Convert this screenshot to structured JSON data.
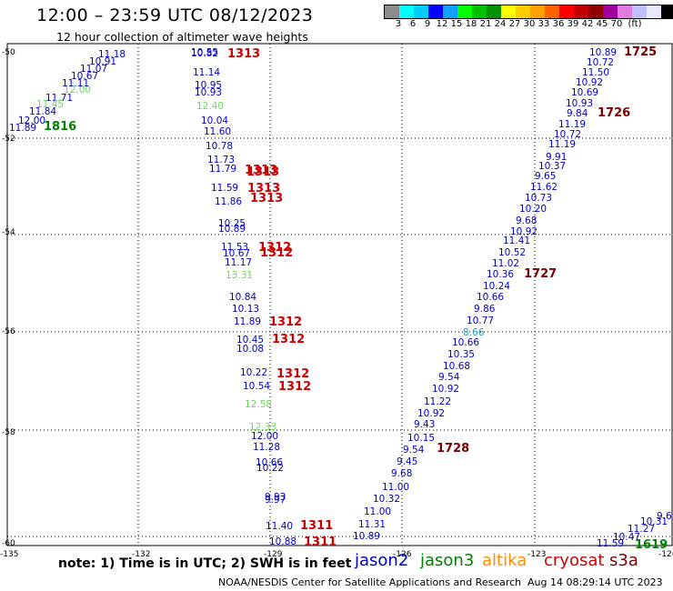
{
  "header": {
    "title": "12:00 – 23:59 UTC 08/12/2023",
    "subtitle": "12 hour collection of altimeter wave heights"
  },
  "legend": {
    "colors": [
      "#8c8c8c",
      "#00ffff",
      "#00ccff",
      "#0000ff",
      "#10a0ff",
      "#00ff00",
      "#00c000",
      "#009000",
      "#ffff00",
      "#ffcc00",
      "#ffa000",
      "#ff6000",
      "#ff0000",
      "#c00000",
      "#900000",
      "#a000a0",
      "#e07ce0",
      "#c0c0ff",
      "#e8e8ff",
      "#000000"
    ],
    "labels": [
      "3",
      "6",
      "9",
      "12",
      "15",
      "18",
      "21",
      "24",
      "27",
      "30",
      "33",
      "36",
      "39",
      "42",
      "45",
      "70",
      "(ft)"
    ]
  },
  "axes": {
    "lat_labels": [
      "-50",
      "-52",
      "-54",
      "-56",
      "-58",
      "-60"
    ],
    "lon_labels": [
      "-135",
      "-132",
      "-129",
      "-126",
      "-123",
      "-12("
    ]
  },
  "colors": {
    "jason2": "#0000cc",
    "jason3": "#008000",
    "altika": "#ff8c00",
    "cryosat": "#cc0000",
    "s3a": "#7a0000",
    "light": "#66dd55",
    "cyan": "#2299bb"
  },
  "labels": [
    {
      "t": "11.18",
      "c": "jason2"
    },
    {
      "t": "10.91",
      "c": "jason2"
    },
    {
      "t": "11.07",
      "c": "jason2"
    },
    {
      "t": "10.67",
      "c": "jason2"
    },
    {
      "t": "12.00",
      "c": "light"
    },
    {
      "t": "11.11",
      "c": "jason2"
    },
    {
      "t": "11.71",
      "c": "jason2"
    },
    {
      "t": "11.45",
      "c": "light"
    },
    {
      "t": "11.84",
      "c": "jason2"
    },
    {
      "t": "12.00",
      "c": "jason2"
    },
    {
      "t": "11.89",
      "c": "jason2"
    },
    {
      "t": "1816",
      "c": "jason3"
    },
    {
      "t": "10.55",
      "c": "jason2"
    },
    {
      "t": "10.82",
      "c": "jason2"
    },
    {
      "t": "1313",
      "c": "cryosat"
    },
    {
      "t": "11.14",
      "c": "jason2"
    },
    {
      "t": "10.95",
      "c": "jason2"
    },
    {
      "t": "10.93",
      "c": "jason2"
    },
    {
      "t": "12.40",
      "c": "light"
    },
    {
      "t": "10.04",
      "c": "jason2"
    },
    {
      "t": "11.60",
      "c": "jason2"
    },
    {
      "t": "10.78",
      "c": "jason2"
    },
    {
      "t": "11.73",
      "c": "jason2"
    },
    {
      "t": "11.79",
      "c": "jason2"
    },
    {
      "t": "1313",
      "c": "cryosat"
    },
    {
      "t": "1313",
      "c": "cryosat"
    },
    {
      "t": "11.59",
      "c": "jason2"
    },
    {
      "t": "1313",
      "c": "cryosat"
    },
    {
      "t": "11.86",
      "c": "jason2"
    },
    {
      "t": "1313",
      "c": "cryosat"
    },
    {
      "t": "10.25",
      "c": "jason2"
    },
    {
      "t": "10.89",
      "c": "jason2"
    },
    {
      "t": "11.53",
      "c": "jason2"
    },
    {
      "t": "1312",
      "c": "cryosat"
    },
    {
      "t": "10.67",
      "c": "jason2"
    },
    {
      "t": "1312",
      "c": "cryosat"
    },
    {
      "t": "11.17",
      "c": "jason2"
    },
    {
      "t": "13.31",
      "c": "light"
    },
    {
      "t": "10.84",
      "c": "jason2"
    },
    {
      "t": "10.13",
      "c": "jason2"
    },
    {
      "t": "11.89",
      "c": "jason2"
    },
    {
      "t": "1312",
      "c": "cryosat"
    },
    {
      "t": "10.45",
      "c": "jason2"
    },
    {
      "t": "1312",
      "c": "cryosat"
    },
    {
      "t": "10.08",
      "c": "jason2"
    },
    {
      "t": "10.22",
      "c": "jason2"
    },
    {
      "t": "1312",
      "c": "cryosat"
    },
    {
      "t": "10.54",
      "c": "jason2"
    },
    {
      "t": "1312",
      "c": "cryosat"
    },
    {
      "t": "12.58",
      "c": "light"
    },
    {
      "t": "12.33",
      "c": "light"
    },
    {
      "t": "12.00",
      "c": "jason2"
    },
    {
      "t": "11.28",
      "c": "jason2"
    },
    {
      "t": "10.66",
      "c": "jason2"
    },
    {
      "t": "10.22",
      "c": "jason2"
    },
    {
      "t": "9.93",
      "c": "jason2"
    },
    {
      "t": "9.97",
      "c": "jason2"
    },
    {
      "t": "11.40",
      "c": "jason2"
    },
    {
      "t": "1311",
      "c": "cryosat"
    },
    {
      "t": "10.88",
      "c": "jason2"
    },
    {
      "t": "1311",
      "c": "cryosat"
    },
    {
      "t": "10.89",
      "c": "jason2"
    },
    {
      "t": "1725",
      "c": "s3a"
    },
    {
      "t": "10.72",
      "c": "jason2"
    },
    {
      "t": "11.50",
      "c": "jason2"
    },
    {
      "t": "10.92",
      "c": "jason2"
    },
    {
      "t": "10.69",
      "c": "jason2"
    },
    {
      "t": "10.93",
      "c": "jason2"
    },
    {
      "t": "9.84",
      "c": "jason2"
    },
    {
      "t": "1726",
      "c": "s3a"
    },
    {
      "t": "11.19",
      "c": "jason2"
    },
    {
      "t": "10.72",
      "c": "jason2"
    },
    {
      "t": "11.19",
      "c": "jason2"
    },
    {
      "t": "9.91",
      "c": "jason2"
    },
    {
      "t": "10.37",
      "c": "jason2"
    },
    {
      "t": "9.65",
      "c": "jason2"
    },
    {
      "t": "11.62",
      "c": "jason2"
    },
    {
      "t": "10.73",
      "c": "jason2"
    },
    {
      "t": "10.20",
      "c": "jason2"
    },
    {
      "t": "9.68",
      "c": "jason2"
    },
    {
      "t": "10.92",
      "c": "jason2"
    },
    {
      "t": "11.41",
      "c": "jason2"
    },
    {
      "t": "10.52",
      "c": "jason2"
    },
    {
      "t": "11.02",
      "c": "jason2"
    },
    {
      "t": "10.36",
      "c": "jason2"
    },
    {
      "t": "1727",
      "c": "s3a"
    },
    {
      "t": "10.24",
      "c": "jason2"
    },
    {
      "t": "10.66",
      "c": "jason2"
    },
    {
      "t": "9.86",
      "c": "jason2"
    },
    {
      "t": "10.77",
      "c": "jason2"
    },
    {
      "t": "8.66",
      "c": "cyan"
    },
    {
      "t": "10.66",
      "c": "jason2"
    },
    {
      "t": "10.35",
      "c": "jason2"
    },
    {
      "t": "10.68",
      "c": "jason2"
    },
    {
      "t": "9.54",
      "c": "jason2"
    },
    {
      "t": "10.92",
      "c": "jason2"
    },
    {
      "t": "11.22",
      "c": "jason2"
    },
    {
      "t": "10.92",
      "c": "jason2"
    },
    {
      "t": "9.43",
      "c": "jason2"
    },
    {
      "t": "10.15",
      "c": "jason2"
    },
    {
      "t": "9.54",
      "c": "jason2"
    },
    {
      "t": "1728",
      "c": "s3a"
    },
    {
      "t": "9.45",
      "c": "jason2"
    },
    {
      "t": "9.68",
      "c": "jason2"
    },
    {
      "t": "11.00",
      "c": "jason2"
    },
    {
      "t": "10.32",
      "c": "jason2"
    },
    {
      "t": "11.00",
      "c": "jason2"
    },
    {
      "t": "11.31",
      "c": "jason2"
    },
    {
      "t": "10.89",
      "c": "jason2"
    },
    {
      "t": "9.6",
      "c": "jason2"
    },
    {
      "t": "10.31",
      "c": "jason2"
    },
    {
      "t": "11.27",
      "c": "jason2"
    },
    {
      "t": "10.47",
      "c": "jason2"
    },
    {
      "t": "11.59",
      "c": "jason2"
    },
    {
      "t": "1619",
      "c": "jason3"
    }
  ],
  "footer": {
    "note": "note: 1) Time is in UTC; 2) SWH is in feet",
    "sats": [
      {
        "name": "jason2",
        "c": "jason2"
      },
      {
        "name": "jason3",
        "c": "jason3"
      },
      {
        "name": "altika",
        "c": "altika"
      },
      {
        "name": "cryosat",
        "c": "cryosat"
      },
      {
        "name": "s3a",
        "c": "s3a"
      }
    ],
    "credit": "NOAA/NESDIS Center for Satellite Applications and Research",
    "timestamp": "Aug 14 08:29:14 UTC 2023"
  }
}
